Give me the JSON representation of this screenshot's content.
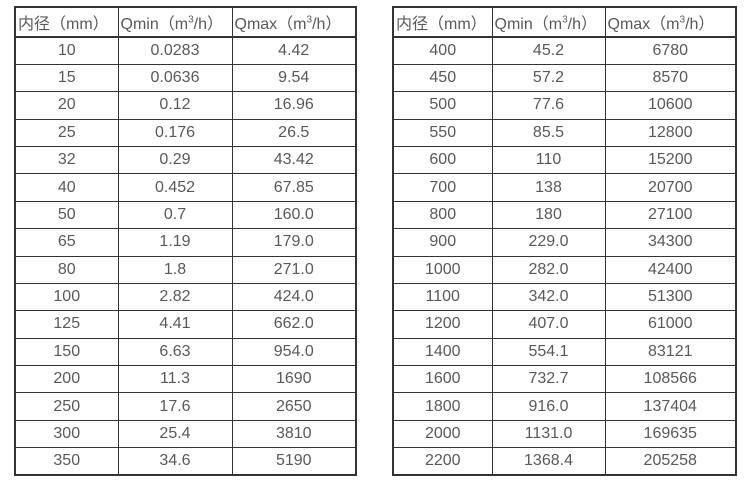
{
  "page": {
    "background_color": "#ffffff",
    "text_color": "#595959",
    "border_color": "#333333"
  },
  "tables": [
    {
      "name": "small-diameter-flow-table",
      "headers": [
        {
          "pre": "内径（mm）",
          "sup": "",
          "post": ""
        },
        {
          "pre": "Qmin（m",
          "sup": "3",
          "post": "/h）"
        },
        {
          "pre": "Qmax（m",
          "sup": "3",
          "post": "/h）"
        }
      ],
      "rows": [
        [
          "10",
          "0.0283",
          "4.42"
        ],
        [
          "15",
          "0.0636",
          "9.54"
        ],
        [
          "20",
          "0.12",
          "16.96"
        ],
        [
          "25",
          "0.176",
          "26.5"
        ],
        [
          "32",
          "0.29",
          "43.42"
        ],
        [
          "40",
          "0.452",
          "67.85"
        ],
        [
          "50",
          "0.7",
          "160.0"
        ],
        [
          "65",
          "1.19",
          "179.0"
        ],
        [
          "80",
          "1.8",
          "271.0"
        ],
        [
          "100",
          "2.82",
          "424.0"
        ],
        [
          "125",
          "4.41",
          "662.0"
        ],
        [
          "150",
          "6.63",
          "954.0"
        ],
        [
          "200",
          "11.3",
          "1690"
        ],
        [
          "250",
          "17.6",
          "2650"
        ],
        [
          "300",
          "25.4",
          "3810"
        ],
        [
          "350",
          "34.6",
          "5190"
        ]
      ]
    },
    {
      "name": "large-diameter-flow-table",
      "headers": [
        {
          "pre": "内径（mm）",
          "sup": "",
          "post": ""
        },
        {
          "pre": "Qmin（m",
          "sup": "3",
          "post": "/h）"
        },
        {
          "pre": "Qmax（m",
          "sup": "3",
          "post": "/h）"
        }
      ],
      "rows": [
        [
          "400",
          "45.2",
          "6780"
        ],
        [
          "450",
          "57.2",
          "8570"
        ],
        [
          "500",
          "77.6",
          "10600"
        ],
        [
          "550",
          "85.5",
          "12800"
        ],
        [
          "600",
          "110",
          "15200"
        ],
        [
          "700",
          "138",
          "20700"
        ],
        [
          "800",
          "180",
          "27100"
        ],
        [
          "900",
          "229.0",
          "34300"
        ],
        [
          "1000",
          "282.0",
          "42400"
        ],
        [
          "1100",
          "342.0",
          "51300"
        ],
        [
          "1200",
          "407.0",
          "61000"
        ],
        [
          "1400",
          "554.1",
          "83121"
        ],
        [
          "1600",
          "732.7",
          "108566"
        ],
        [
          "1800",
          "916.0",
          "137404"
        ],
        [
          "2000",
          "1131.0",
          "169635"
        ],
        [
          "2200",
          "1368.4",
          "205258"
        ]
      ]
    }
  ]
}
